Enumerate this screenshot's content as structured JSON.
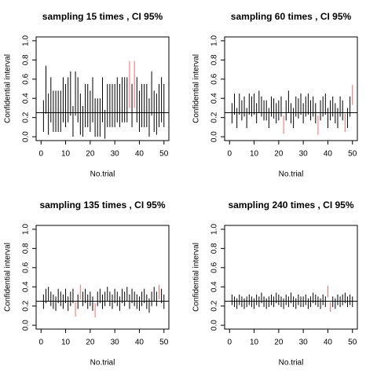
{
  "chart_data": [
    {
      "type": "interval",
      "title": "sampling 15 times , CI 95%",
      "xlabel": "No.trial",
      "ylabel": "Confidential interval",
      "x": [
        1,
        2,
        3,
        4,
        5,
        6,
        7,
        8,
        9,
        10,
        11,
        12,
        13,
        14,
        15,
        16,
        17,
        18,
        19,
        20,
        21,
        22,
        23,
        24,
        25,
        26,
        27,
        28,
        29,
        30,
        31,
        32,
        33,
        34,
        35,
        36,
        37,
        38,
        39,
        40,
        41,
        42,
        43,
        44,
        45,
        46,
        47,
        48,
        49,
        50
      ],
      "lower": [
        0.05,
        0.24,
        0.02,
        0.15,
        0.05,
        0.05,
        0.05,
        0.05,
        0.15,
        0.1,
        0.15,
        0.22,
        0.0,
        0.22,
        0.15,
        0.02,
        0.0,
        0.1,
        0.1,
        0.05,
        0.15,
        0.0,
        0.0,
        0.0,
        0.15,
        -0.02,
        0.1,
        0.1,
        0.1,
        0.1,
        0.15,
        0.1,
        0.15,
        0.15,
        0.15,
        0.3,
        0.1,
        0.3,
        0.15,
        0.05,
        0.1,
        0.1,
        0.1,
        0.0,
        0.22,
        0.05,
        0.02,
        0.1,
        0.15,
        0.1
      ],
      "upper": [
        0.38,
        0.74,
        0.45,
        0.62,
        0.48,
        0.48,
        0.48,
        0.48,
        0.62,
        0.55,
        0.62,
        0.68,
        0.32,
        0.68,
        0.62,
        0.45,
        0.32,
        0.55,
        0.55,
        0.48,
        0.62,
        0.4,
        0.4,
        0.4,
        0.62,
        0.28,
        0.55,
        0.55,
        0.55,
        0.55,
        0.62,
        0.55,
        0.62,
        0.62,
        0.62,
        0.79,
        0.55,
        0.79,
        0.62,
        0.48,
        0.55,
        0.55,
        0.55,
        0.4,
        0.68,
        0.48,
        0.45,
        0.55,
        0.62,
        0.55
      ],
      "hline": 0.25,
      "color": "#000000",
      "miss_color": "#ff6666",
      "xlim": [
        -2,
        52
      ],
      "ylim": [
        -0.04,
        1.04
      ],
      "xticks": [
        0,
        10,
        20,
        30,
        40,
        50
      ],
      "yticks": [
        {
          "value": 0,
          "label": "0.0"
        },
        0.2,
        0.4,
        0.6,
        0.8,
        {
          "value": 1,
          "label": "1.0"
        }
      ]
    },
    {
      "type": "interval",
      "title": "sampling 60 times , CI 95%",
      "xlabel": "No.trial",
      "ylabel": "Confidential interval",
      "x": [
        1,
        2,
        3,
        4,
        5,
        6,
        7,
        8,
        9,
        10,
        11,
        12,
        13,
        14,
        15,
        16,
        17,
        18,
        19,
        20,
        21,
        22,
        23,
        24,
        25,
        26,
        27,
        28,
        29,
        30,
        31,
        32,
        33,
        34,
        35,
        36,
        37,
        38,
        39,
        40,
        41,
        42,
        43,
        44,
        45,
        46,
        47,
        48,
        49,
        50
      ],
      "lower": [
        0.14,
        0.23,
        0.09,
        0.23,
        0.17,
        0.21,
        0.09,
        0.23,
        0.21,
        0.23,
        0.14,
        0.25,
        0.21,
        0.17,
        0.17,
        0.09,
        0.21,
        0.19,
        0.14,
        0.17,
        0.21,
        0.03,
        0.17,
        0.25,
        0.14,
        0.09,
        0.21,
        0.19,
        0.23,
        0.14,
        0.21,
        0.23,
        0.17,
        0.21,
        0.14,
        0.02,
        0.17,
        0.21,
        0.23,
        0.09,
        0.17,
        0.21,
        0.14,
        0.09,
        0.21,
        0.17,
        0.05,
        0.09,
        0.21,
        0.33
      ],
      "upper": [
        0.35,
        0.45,
        0.3,
        0.45,
        0.38,
        0.42,
        0.3,
        0.45,
        0.42,
        0.45,
        0.35,
        0.48,
        0.42,
        0.38,
        0.38,
        0.3,
        0.42,
        0.4,
        0.35,
        0.38,
        0.42,
        0.22,
        0.38,
        0.48,
        0.35,
        0.3,
        0.42,
        0.4,
        0.45,
        0.35,
        0.42,
        0.45,
        0.38,
        0.42,
        0.35,
        0.22,
        0.38,
        0.42,
        0.45,
        0.3,
        0.38,
        0.42,
        0.35,
        0.3,
        0.42,
        0.38,
        0.24,
        0.3,
        0.42,
        0.54
      ],
      "hline": 0.25,
      "color": "#000000",
      "miss_color": "#ff6666",
      "xlim": [
        -2,
        52
      ],
      "ylim": [
        -0.04,
        1.04
      ],
      "xticks": [
        0,
        10,
        20,
        30,
        40,
        50
      ],
      "yticks": [
        {
          "value": 0,
          "label": "0.0"
        },
        0.2,
        0.4,
        0.6,
        0.8,
        {
          "value": 1,
          "label": "1.0"
        }
      ]
    },
    {
      "type": "interval",
      "title": "sampling 135 times , CI 95%",
      "xlabel": "No.trial",
      "ylabel": "Confidential interval",
      "x": [
        1,
        2,
        3,
        4,
        5,
        6,
        7,
        8,
        9,
        10,
        11,
        12,
        13,
        14,
        15,
        16,
        17,
        18,
        19,
        20,
        21,
        22,
        23,
        24,
        25,
        26,
        27,
        28,
        29,
        30,
        31,
        32,
        33,
        34,
        35,
        36,
        37,
        38,
        39,
        40,
        41,
        42,
        43,
        44,
        45,
        46,
        47,
        48,
        49,
        50
      ],
      "lower": [
        0.17,
        0.23,
        0.25,
        0.2,
        0.17,
        0.15,
        0.23,
        0.2,
        0.17,
        0.23,
        0.15,
        0.2,
        0.23,
        0.09,
        0.17,
        0.27,
        0.2,
        0.23,
        0.17,
        0.2,
        0.15,
        0.08,
        0.2,
        0.23,
        0.17,
        0.2,
        0.25,
        0.2,
        0.17,
        0.23,
        0.2,
        0.15,
        0.23,
        0.2,
        0.25,
        0.17,
        0.23,
        0.2,
        0.17,
        0.15,
        0.2,
        0.23,
        0.17,
        0.13,
        0.2,
        0.25,
        0.2,
        0.27,
        0.23,
        0.17
      ],
      "upper": [
        0.32,
        0.38,
        0.4,
        0.35,
        0.32,
        0.3,
        0.38,
        0.35,
        0.32,
        0.38,
        0.3,
        0.35,
        0.38,
        0.24,
        0.32,
        0.42,
        0.35,
        0.38,
        0.32,
        0.35,
        0.3,
        0.23,
        0.35,
        0.38,
        0.32,
        0.35,
        0.4,
        0.35,
        0.32,
        0.38,
        0.35,
        0.3,
        0.38,
        0.35,
        0.4,
        0.32,
        0.38,
        0.35,
        0.32,
        0.3,
        0.35,
        0.38,
        0.32,
        0.28,
        0.35,
        0.4,
        0.35,
        0.42,
        0.38,
        0.32
      ],
      "hline": 0.25,
      "color": "#000000",
      "miss_color": "#ff6666",
      "xlim": [
        -2,
        52
      ],
      "ylim": [
        -0.04,
        1.04
      ],
      "xticks": [
        0,
        10,
        20,
        30,
        40,
        50
      ],
      "yticks": [
        {
          "value": 0,
          "label": "0.0"
        },
        0.2,
        0.4,
        0.6,
        0.8,
        {
          "value": 1,
          "label": "1.0"
        }
      ]
    },
    {
      "type": "interval",
      "title": "sampling 240 times , CI 95%",
      "xlabel": "No.trial",
      "ylabel": "Confidential interval",
      "x": [
        1,
        2,
        3,
        4,
        5,
        6,
        7,
        8,
        9,
        10,
        11,
        12,
        13,
        14,
        15,
        16,
        17,
        18,
        19,
        20,
        21,
        22,
        23,
        24,
        25,
        26,
        27,
        28,
        29,
        30,
        31,
        32,
        33,
        34,
        35,
        36,
        37,
        38,
        39,
        40,
        41,
        42,
        43,
        44,
        45,
        46,
        47,
        48,
        49,
        50
      ],
      "lower": [
        0.21,
        0.19,
        0.17,
        0.21,
        0.19,
        0.17,
        0.19,
        0.21,
        0.19,
        0.17,
        0.21,
        0.19,
        0.23,
        0.19,
        0.17,
        0.19,
        0.21,
        0.19,
        0.23,
        0.21,
        0.19,
        0.17,
        0.21,
        0.19,
        0.23,
        0.19,
        0.17,
        0.21,
        0.19,
        0.19,
        0.21,
        0.17,
        0.19,
        0.23,
        0.21,
        0.19,
        0.17,
        0.21,
        0.19,
        0.29,
        0.14,
        0.19,
        0.17,
        0.21,
        0.19,
        0.21,
        0.23,
        0.19,
        0.21,
        0.19
      ],
      "upper": [
        0.32,
        0.3,
        0.28,
        0.32,
        0.3,
        0.28,
        0.3,
        0.32,
        0.3,
        0.28,
        0.32,
        0.3,
        0.34,
        0.3,
        0.28,
        0.3,
        0.32,
        0.3,
        0.34,
        0.32,
        0.3,
        0.28,
        0.32,
        0.3,
        0.34,
        0.3,
        0.28,
        0.32,
        0.3,
        0.3,
        0.32,
        0.28,
        0.3,
        0.34,
        0.32,
        0.3,
        0.28,
        0.32,
        0.3,
        0.41,
        0.24,
        0.3,
        0.28,
        0.32,
        0.3,
        0.32,
        0.34,
        0.3,
        0.32,
        0.3
      ],
      "hline": 0.25,
      "color": "#000000",
      "miss_color": "#ff6666",
      "xlim": [
        -2,
        52
      ],
      "ylim": [
        -0.04,
        1.04
      ],
      "xticks": [
        0,
        10,
        20,
        30,
        40,
        50
      ],
      "yticks": [
        {
          "value": 0,
          "label": "0.0"
        },
        0.2,
        0.4,
        0.6,
        0.8,
        {
          "value": 1,
          "label": "1.0"
        }
      ]
    }
  ]
}
